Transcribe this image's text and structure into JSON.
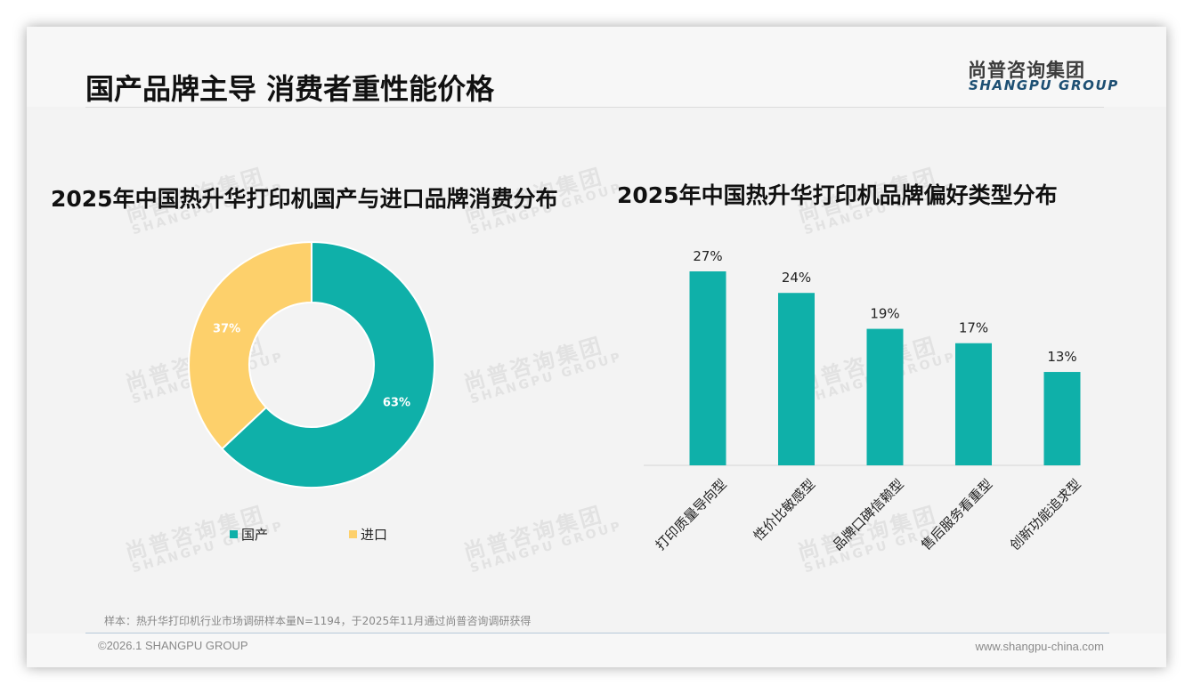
{
  "slide": {
    "title": "国产品牌主导 消费者重性能价格",
    "logo": {
      "cn": "尚普咨询集团",
      "en": "SHANGPU GROUP"
    },
    "watermark": {
      "cn": "尚普咨询集团",
      "en": "SHANGPU GROUP"
    },
    "sample_note": "样本：热升华打印机行业市场调研样本量N=1194，于2025年11月通过尚普咨询调研获得",
    "footer": {
      "copyright": "©2026.1 SHANGPU GROUP",
      "website": "www.shangpu-china.com"
    }
  },
  "colors": {
    "teal": "#0fb0a9",
    "yellow": "#fdd06b",
    "title_blue": "#1d4f73"
  },
  "chart_data": [
    {
      "type": "pie",
      "subtype": "donut",
      "title": "2025年中国热升华打印机国产与进口品牌消费分布",
      "categories": [
        "国产",
        "进口"
      ],
      "values": [
        63,
        37
      ],
      "labels": [
        "63%",
        "37%"
      ],
      "colors": [
        "#0fb0a9",
        "#fdd06b"
      ],
      "legend_position": "bottom"
    },
    {
      "type": "bar",
      "title": "2025年中国热升华打印机品牌偏好类型分布",
      "categories": [
        "打印质量导向型",
        "性价比敏感型",
        "品牌口碑信赖型",
        "售后服务看重型",
        "创新功能追求型"
      ],
      "values": [
        27,
        24,
        19,
        17,
        13
      ],
      "labels": [
        "27%",
        "24%",
        "19%",
        "17%",
        "13%"
      ],
      "xlabel": "",
      "ylabel": "",
      "grid": false,
      "color": "#0fb0a9"
    }
  ]
}
